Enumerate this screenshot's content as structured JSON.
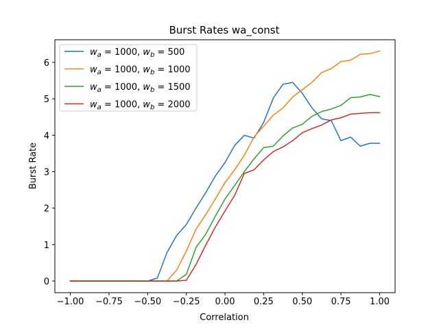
{
  "chart_data": {
    "type": "line",
    "title": "Burst Rates wa_const",
    "xlabel": "Correlation",
    "ylabel": "Burst Rate",
    "xlim": [
      -1.1,
      1.1
    ],
    "ylim": [
      -0.32,
      6.62
    ],
    "x_ticks": [
      -1.0,
      -0.75,
      -0.5,
      -0.25,
      0.0,
      0.25,
      0.5,
      0.75,
      1.0
    ],
    "x_tick_labels": [
      "−1.00",
      "−0.75",
      "−0.50",
      "−0.25",
      "0.00",
      "0.25",
      "0.50",
      "0.75",
      "1.00"
    ],
    "y_ticks": [
      0,
      1,
      2,
      3,
      4,
      5,
      6
    ],
    "y_tick_labels": [
      "0",
      "1",
      "2",
      "3",
      "4",
      "5",
      "6"
    ],
    "grid": false,
    "legend_position": "top-left",
    "x": [
      -1.0,
      -0.9375,
      -0.875,
      -0.8125,
      -0.75,
      -0.6875,
      -0.625,
      -0.5625,
      -0.5,
      -0.4375,
      -0.375,
      -0.3125,
      -0.25,
      -0.1875,
      -0.125,
      -0.0625,
      0.0,
      0.0625,
      0.125,
      0.1875,
      0.25,
      0.3125,
      0.375,
      0.4375,
      0.5,
      0.5625,
      0.625,
      0.6875,
      0.75,
      0.8125,
      0.875,
      0.9375,
      1.0
    ],
    "series": [
      {
        "name": "w_a = 1000, w_b = 500",
        "label_parts": {
          "a": "a",
          "va": "1000, ",
          "b": "b",
          "vb": "500"
        },
        "color": "#1f77b4",
        "values": [
          0,
          0,
          0,
          0,
          0,
          0,
          0,
          0,
          0,
          0.08,
          0.78,
          1.25,
          1.55,
          2.0,
          2.42,
          2.88,
          3.25,
          3.72,
          4.0,
          3.92,
          4.35,
          5.02,
          5.4,
          5.45,
          5.15,
          4.75,
          4.45,
          4.4,
          3.85,
          3.95,
          3.7,
          3.78,
          3.78
        ]
      },
      {
        "name": "w_a = 1000, w_b = 1000",
        "label_parts": {
          "a": "a",
          "va": "1000, ",
          "b": "b",
          "vb": "1000"
        },
        "color": "#ff7f0e",
        "values": [
          0,
          0,
          0,
          0,
          0,
          0,
          0,
          0,
          0,
          0,
          0,
          0.3,
          0.82,
          1.42,
          1.82,
          2.25,
          2.7,
          3.05,
          3.45,
          3.95,
          4.25,
          4.55,
          4.75,
          5.05,
          5.25,
          5.45,
          5.72,
          5.83,
          6.02,
          6.06,
          6.22,
          6.24,
          6.31
        ]
      },
      {
        "name": "w_a = 1000, w_b = 1500",
        "label_parts": {
          "a": "a",
          "va": "1000, ",
          "b": "b",
          "vb": "1500"
        },
        "color": "#2ca02c",
        "values": [
          0,
          0,
          0,
          0,
          0,
          0,
          0,
          0,
          0,
          0,
          0,
          0,
          0.18,
          0.92,
          1.28,
          1.78,
          2.25,
          2.62,
          3.0,
          3.35,
          3.66,
          3.7,
          3.98,
          4.2,
          4.3,
          4.52,
          4.65,
          4.72,
          4.82,
          5.03,
          5.05,
          5.12,
          5.06
        ]
      },
      {
        "name": "w_a = 1000, w_b = 2000",
        "label_parts": {
          "a": "a",
          "va": "1000, ",
          "b": "b",
          "vb": "2000"
        },
        "color": "#d62728",
        "values": [
          0,
          0,
          0,
          0,
          0,
          0,
          0,
          0,
          0,
          0,
          0,
          0,
          0.02,
          0.45,
          0.98,
          1.48,
          1.92,
          2.35,
          2.95,
          3.05,
          3.32,
          3.55,
          3.68,
          3.85,
          4.07,
          4.18,
          4.28,
          4.42,
          4.48,
          4.58,
          4.6,
          4.62,
          4.62
        ]
      }
    ]
  }
}
